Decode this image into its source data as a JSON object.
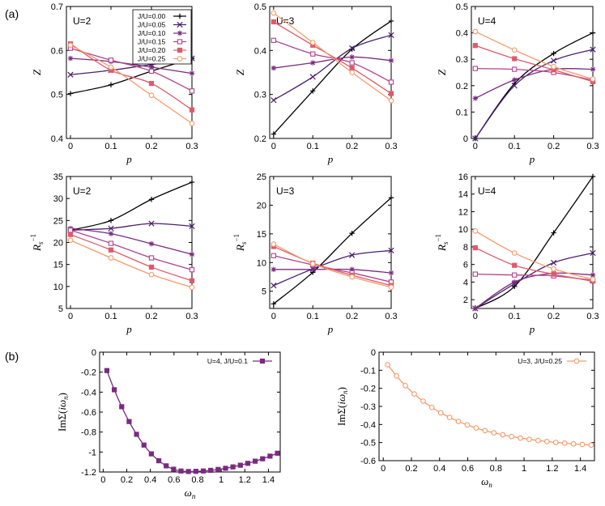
{
  "figure": {
    "label_a": "(a)",
    "label_b": "(b)"
  },
  "colors": {
    "J0.00": "#000000",
    "J0.05": "#4b1f6f",
    "J0.10": "#7a2a80",
    "J0.15": "#b2438e",
    "J0.20": "#de5a6a",
    "J0.25": "#f79a6b"
  },
  "legend": [
    "J/U=0.00",
    "J/U=0.05",
    "J/U=0.10",
    "J/U=0.15",
    "J/U=0.20",
    "J/U=0.25"
  ],
  "chart_data": [
    {
      "id": "Z_U2",
      "type": "line",
      "title": "U=2",
      "xlabel": "p",
      "ylabel": "Z",
      "x": [
        0,
        0.1,
        0.2,
        0.3
      ],
      "xlim": [
        -0.01,
        0.3
      ],
      "ylim": [
        0.4,
        0.7
      ],
      "xticks": [
        "0",
        "0.1",
        "0.2",
        "0.3"
      ],
      "yticks": [
        "0.4",
        "0.5",
        "0.6",
        "0.7"
      ],
      "ytick_values": [
        0.4,
        0.5,
        0.6,
        0.7
      ],
      "show_legend": true,
      "series": [
        {
          "name": "J/U=0.00",
          "values": [
            0.502,
            0.522,
            0.553,
            0.582
          ]
        },
        {
          "name": "J/U=0.05",
          "values": [
            0.545,
            0.555,
            0.568,
            0.582
          ]
        },
        {
          "name": "J/U=0.10",
          "values": [
            0.582,
            0.575,
            0.562,
            0.548
          ]
        },
        {
          "name": "J/U=0.15",
          "values": [
            0.605,
            0.578,
            0.553,
            0.508
          ]
        },
        {
          "name": "J/U=0.20",
          "values": [
            0.615,
            0.555,
            0.525,
            0.465
          ]
        },
        {
          "name": "J/U=0.25",
          "values": [
            0.612,
            0.562,
            0.498,
            0.434
          ]
        }
      ]
    },
    {
      "id": "Z_U3",
      "type": "line",
      "title": "U=3",
      "xlabel": "p",
      "ylabel": "Z",
      "x": [
        0,
        0.1,
        0.2,
        0.3
      ],
      "xlim": [
        -0.01,
        0.3
      ],
      "ylim": [
        0.2,
        0.5
      ],
      "xticks": [
        "0",
        "0.1",
        "0.2",
        "0.3"
      ],
      "yticks": [
        "0.2",
        "0.3",
        "0.4",
        "0.5"
      ],
      "ytick_values": [
        0.2,
        0.3,
        0.4,
        0.5
      ],
      "series": [
        {
          "name": "J/U=0.00",
          "values": [
            0.21,
            0.308,
            0.403,
            0.467
          ]
        },
        {
          "name": "J/U=0.05",
          "values": [
            0.287,
            0.34,
            0.405,
            0.435
          ]
        },
        {
          "name": "J/U=0.10",
          "values": [
            0.36,
            0.372,
            0.385,
            0.377
          ]
        },
        {
          "name": "J/U=0.15",
          "values": [
            0.423,
            0.392,
            0.372,
            0.328
          ]
        },
        {
          "name": "J/U=0.20",
          "values": [
            0.465,
            0.412,
            0.36,
            0.302
          ]
        },
        {
          "name": "J/U=0.25",
          "values": [
            0.485,
            0.418,
            0.35,
            0.286
          ]
        }
      ]
    },
    {
      "id": "Z_U4",
      "type": "line",
      "title": "U=4",
      "xlabel": "p",
      "ylabel": "Z",
      "x": [
        0,
        0.1,
        0.2,
        0.3
      ],
      "xlim": [
        -0.01,
        0.3
      ],
      "ylim": [
        0,
        0.5
      ],
      "xticks": [
        "0",
        "0.1",
        "0.2",
        "0.3"
      ],
      "yticks": [
        "0",
        "0.1",
        "0.2",
        "0.3",
        "0.4",
        "0.5"
      ],
      "ytick_values": [
        0,
        0.1,
        0.2,
        0.3,
        0.4,
        0.5
      ],
      "series": [
        {
          "name": "J/U=0.00",
          "values": [
            0.0,
            0.208,
            0.322,
            0.4
          ]
        },
        {
          "name": "J/U=0.05",
          "values": [
            0.0,
            0.2,
            0.295,
            0.337
          ]
        },
        {
          "name": "J/U=0.10",
          "values": [
            0.152,
            0.222,
            0.262,
            0.262
          ]
        },
        {
          "name": "J/U=0.15",
          "values": [
            0.265,
            0.262,
            0.25,
            0.221
          ]
        },
        {
          "name": "J/U=0.20",
          "values": [
            0.352,
            0.302,
            0.26,
            0.215
          ]
        },
        {
          "name": "J/U=0.25",
          "values": [
            0.405,
            0.335,
            0.272,
            0.225
          ]
        }
      ]
    },
    {
      "id": "R_U2",
      "type": "line",
      "title": "U=2",
      "xlabel": "p",
      "ylabel": "R_s^-1",
      "x": [
        0,
        0.1,
        0.2,
        0.3
      ],
      "xlim": [
        -0.01,
        0.3
      ],
      "ylim": [
        5,
        35
      ],
      "xticks": [
        "0",
        "0.1",
        "0.2",
        "0.3"
      ],
      "yticks": [
        "5",
        "10",
        "15",
        "20",
        "25",
        "30",
        "35"
      ],
      "ytick_values": [
        5,
        10,
        15,
        20,
        25,
        30,
        35
      ],
      "series": [
        {
          "name": "J/U=0.00",
          "values": [
            22.8,
            25.0,
            29.8,
            33.7
          ]
        },
        {
          "name": "J/U=0.05",
          "values": [
            22.8,
            23.2,
            24.3,
            23.7
          ]
        },
        {
          "name": "J/U=0.10",
          "values": [
            23.2,
            22.0,
            19.7,
            17.3
          ]
        },
        {
          "name": "J/U=0.15",
          "values": [
            22.8,
            19.8,
            16.5,
            13.8
          ]
        },
        {
          "name": "J/U=0.20",
          "values": [
            21.8,
            18.3,
            14.4,
            11.3
          ]
        },
        {
          "name": "J/U=0.25",
          "values": [
            20.5,
            16.5,
            12.7,
            9.8
          ]
        }
      ]
    },
    {
      "id": "R_U3",
      "type": "line",
      "title": "U=3",
      "xlabel": "p",
      "ylabel": "R_s^-1",
      "x": [
        0,
        0.1,
        0.2,
        0.3
      ],
      "xlim": [
        -0.01,
        0.3
      ],
      "ylim": [
        2,
        25
      ],
      "xticks": [
        "0",
        "0.1",
        "0.2",
        "0.3"
      ],
      "yticks": [
        "5",
        "10",
        "15",
        "20",
        "25"
      ],
      "ytick_values": [
        5,
        10,
        15,
        20,
        25
      ],
      "series": [
        {
          "name": "J/U=0.00",
          "values": [
            2.8,
            8.3,
            15.1,
            21.3
          ]
        },
        {
          "name": "J/U=0.05",
          "values": [
            6.0,
            8.9,
            11.3,
            12.1
          ]
        },
        {
          "name": "J/U=0.10",
          "values": [
            8.8,
            8.8,
            8.8,
            8.2
          ]
        },
        {
          "name": "J/U=0.15",
          "values": [
            11.2,
            9.6,
            8.2,
            6.6
          ]
        },
        {
          "name": "J/U=0.20",
          "values": [
            12.8,
            9.9,
            7.8,
            6.0
          ]
        },
        {
          "name": "J/U=0.25",
          "values": [
            13.2,
            9.8,
            7.5,
            5.7
          ]
        }
      ]
    },
    {
      "id": "R_U4",
      "type": "line",
      "title": "U=4",
      "xlabel": "p",
      "ylabel": "R_s^-1",
      "x": [
        0,
        0.1,
        0.2,
        0.3
      ],
      "xlim": [
        -0.01,
        0.3
      ],
      "ylim": [
        1,
        16
      ],
      "xticks": [
        "0",
        "0.1",
        "0.2",
        "0.3"
      ],
      "yticks": [
        "2",
        "4",
        "6",
        "8",
        "10",
        "12",
        "14",
        "16"
      ],
      "ytick_values": [
        2,
        4,
        6,
        8,
        10,
        12,
        14,
        16
      ],
      "series": [
        {
          "name": "J/U=0.00",
          "values": [
            1.0,
            3.5,
            9.6,
            16.0
          ]
        },
        {
          "name": "J/U=0.05",
          "values": [
            1.0,
            3.8,
            6.2,
            7.3
          ]
        },
        {
          "name": "J/U=0.10",
          "values": [
            1.0,
            4.0,
            5.0,
            4.8
          ]
        },
        {
          "name": "J/U=0.15",
          "values": [
            4.9,
            4.8,
            4.7,
            4.2
          ]
        },
        {
          "name": "J/U=0.20",
          "values": [
            7.9,
            5.9,
            4.9,
            4.1
          ]
        },
        {
          "name": "J/U=0.25",
          "values": [
            9.8,
            7.3,
            5.5,
            4.3
          ]
        }
      ]
    },
    {
      "id": "Sigma_U4",
      "type": "line",
      "title": "",
      "xlabel": "ω_n",
      "ylabel": "ImΣ(iω_n)",
      "xlim": [
        -0.03,
        1.5
      ],
      "ylim": [
        -1.2,
        0
      ],
      "xticks": [
        "0",
        "0.2",
        "0.4",
        "0.6",
        "0.8",
        "1",
        "1.2",
        "1.4"
      ],
      "xtick_values": [
        0,
        0.2,
        0.4,
        0.6,
        0.8,
        1,
        1.2,
        1.4
      ],
      "yticks": [
        "0",
        "-0.2",
        "-0.4",
        "-0.6",
        "-0.8",
        "-1",
        "-1.2"
      ],
      "ytick_values": [
        0,
        -0.2,
        -0.4,
        -0.6,
        -0.8,
        -1,
        -1.2
      ],
      "legend_label": "U=4, J/U=0.1",
      "color": "#7a2a80",
      "marker": "square",
      "curve": "lowfreq",
      "a": 0.0,
      "b": -3.25,
      "c": 1.62,
      "c2": 0.0,
      "w0": 0.04
    },
    {
      "id": "Sigma_U3",
      "type": "line",
      "title": "",
      "xlabel": "ω_n",
      "ylabel": "ImΣ(iω_n)",
      "xlim": [
        -0.03,
        1.5
      ],
      "ylim": [
        -0.6,
        0
      ],
      "xticks": [
        "0",
        "0.2",
        "0.4",
        "0.6",
        "0.8",
        "1",
        "1.2",
        "1.4"
      ],
      "xtick_values": [
        0,
        0.2,
        0.4,
        0.6,
        0.8,
        1,
        1.2,
        1.4
      ],
      "yticks": [
        "0",
        "-0.1",
        "-0.2",
        "-0.3",
        "-0.4",
        "-0.5",
        "-0.6"
      ],
      "ytick_values": [
        0,
        -0.1,
        -0.2,
        -0.3,
        -0.4,
        -0.5,
        -0.6
      ],
      "legend_label": "U=3, J/U=0.25",
      "color": "#f79a6b",
      "marker": "circle",
      "curve": "saturating",
      "amp": -0.51,
      "tau": 0.42,
      "w0": 0.0,
      "start": -0.035
    }
  ]
}
